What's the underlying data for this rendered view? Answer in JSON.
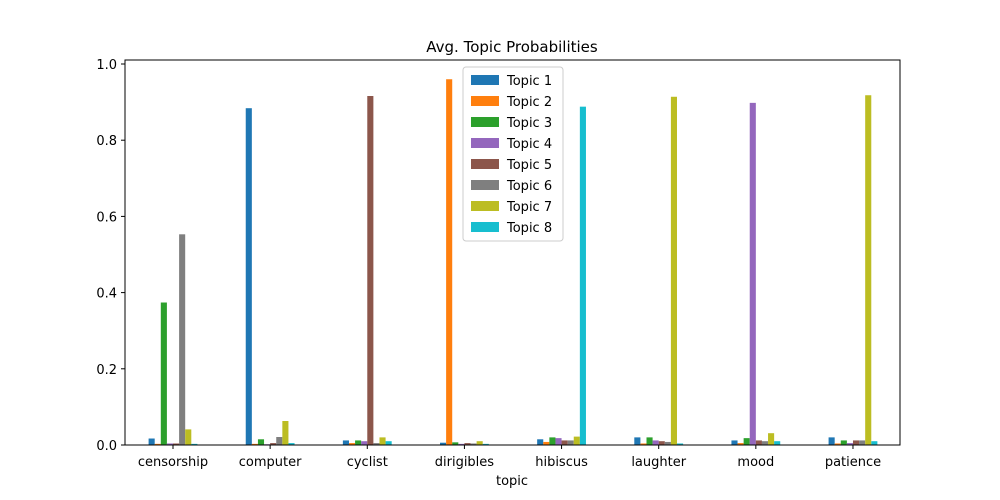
{
  "chart_data": {
    "type": "bar",
    "title": "Avg. Topic Probabilities",
    "xlabel": "topic",
    "ylabel": "",
    "ylim": [
      0,
      1.0
    ],
    "yticks": [
      "0.0",
      "0.2",
      "0.4",
      "0.6",
      "0.8",
      "1.0"
    ],
    "grid": false,
    "legend_position": "top-center",
    "categories": [
      "censorship",
      "computer",
      "cyclist",
      "dirigibles",
      "hibiscus",
      "laughter",
      "mood",
      "patience"
    ],
    "series": [
      {
        "name": "Topic 1",
        "color": "#1f77b4",
        "values": [
          0.017,
          0.884,
          0.012,
          0.006,
          0.015,
          0.02,
          0.012,
          0.02
        ]
      },
      {
        "name": "Topic 2",
        "color": "#ff7f0e",
        "values": [
          0.003,
          0.003,
          0.005,
          0.96,
          0.008,
          0.004,
          0.005,
          0.004
        ]
      },
      {
        "name": "Topic 3",
        "color": "#2ca02c",
        "values": [
          0.374,
          0.015,
          0.012,
          0.007,
          0.02,
          0.02,
          0.018,
          0.012
        ]
      },
      {
        "name": "Topic 4",
        "color": "#9467bd",
        "values": [
          0.004,
          0.002,
          0.01,
          0.003,
          0.018,
          0.012,
          0.898,
          0.005
        ]
      },
      {
        "name": "Topic 5",
        "color": "#8c564b",
        "values": [
          0.004,
          0.005,
          0.916,
          0.005,
          0.012,
          0.01,
          0.012,
          0.012
        ]
      },
      {
        "name": "Topic 6",
        "color": "#7f7f7f",
        "values": [
          0.553,
          0.021,
          0.005,
          0.004,
          0.012,
          0.008,
          0.01,
          0.012
        ]
      },
      {
        "name": "Topic 7",
        "color": "#bcbd22",
        "values": [
          0.041,
          0.063,
          0.02,
          0.01,
          0.022,
          0.914,
          0.031,
          0.918
        ]
      },
      {
        "name": "Topic 8",
        "color": "#17becf",
        "values": [
          0.003,
          0.005,
          0.01,
          0.003,
          0.888,
          0.004,
          0.01,
          0.01
        ]
      }
    ]
  }
}
